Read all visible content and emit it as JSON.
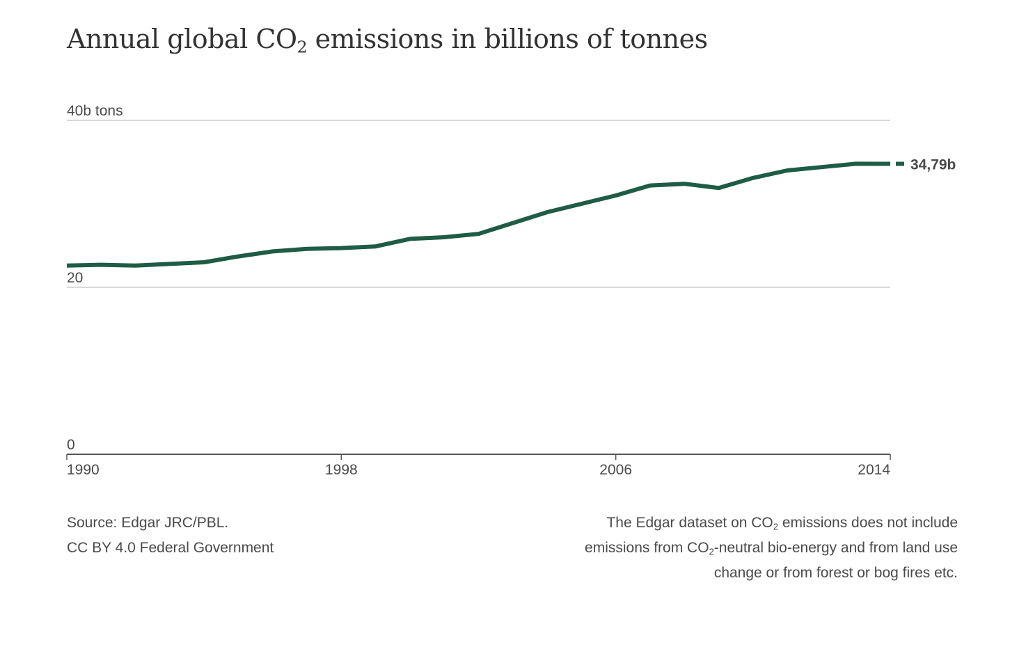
{
  "title": {
    "prefix": "Annual global CO",
    "subscript": "2",
    "suffix": " emissions in billions of tonnes"
  },
  "chart_data": {
    "type": "line",
    "title": "Annual global CO2 emissions in billions of tonnes",
    "xlabel": "",
    "ylabel": "",
    "x": [
      1990,
      1991,
      1992,
      1993,
      1994,
      1995,
      1996,
      1997,
      1998,
      1999,
      2000,
      2001,
      2002,
      2003,
      2004,
      2005,
      2006,
      2007,
      2008,
      2009,
      2010,
      2011,
      2012,
      2013,
      2014
    ],
    "series": [
      {
        "name": "",
        "values": [
          22.6,
          22.7,
          22.6,
          22.8,
          23.0,
          23.7,
          24.3,
          24.6,
          24.7,
          24.9,
          25.8,
          26.0,
          26.4,
          27.7,
          29.0,
          30.0,
          31.0,
          32.2,
          32.4,
          31.9,
          33.1,
          34.0,
          34.4,
          34.8,
          34.79
        ],
        "color": "#1f5c45"
      }
    ],
    "xlim": [
      1990,
      2014
    ],
    "ylim": [
      0,
      40
    ],
    "x_ticks": [
      1990,
      1998,
      2006,
      2014
    ],
    "x_tick_labels": [
      "1990",
      "1998",
      "2006",
      "2014"
    ],
    "y_ticks": [
      0,
      20,
      40
    ],
    "y_tick_labels": [
      "0",
      "20",
      "40b tons"
    ],
    "grid": true,
    "legend": "none",
    "end_label": "34,79b"
  },
  "footer": {
    "source_line1": "Source: Edgar JRC/PBL.",
    "source_line2": "CC BY 4.0 Federal Government",
    "note_line1_prefix": "The Edgar dataset on CO",
    "note_line1_subscript": "2",
    "note_line1_suffix": " emissions does not include",
    "note_line2_prefix": "emissions from CO",
    "note_line2_subscript": "2",
    "note_line2_suffix": "-neutral bio-energy and from land use",
    "note_line3": "change or from forest or bog fires etc."
  },
  "colors": {
    "line": "#1f5c45",
    "grid": "#cccccc",
    "axis": "#555555",
    "text": "#4a4a4a"
  }
}
